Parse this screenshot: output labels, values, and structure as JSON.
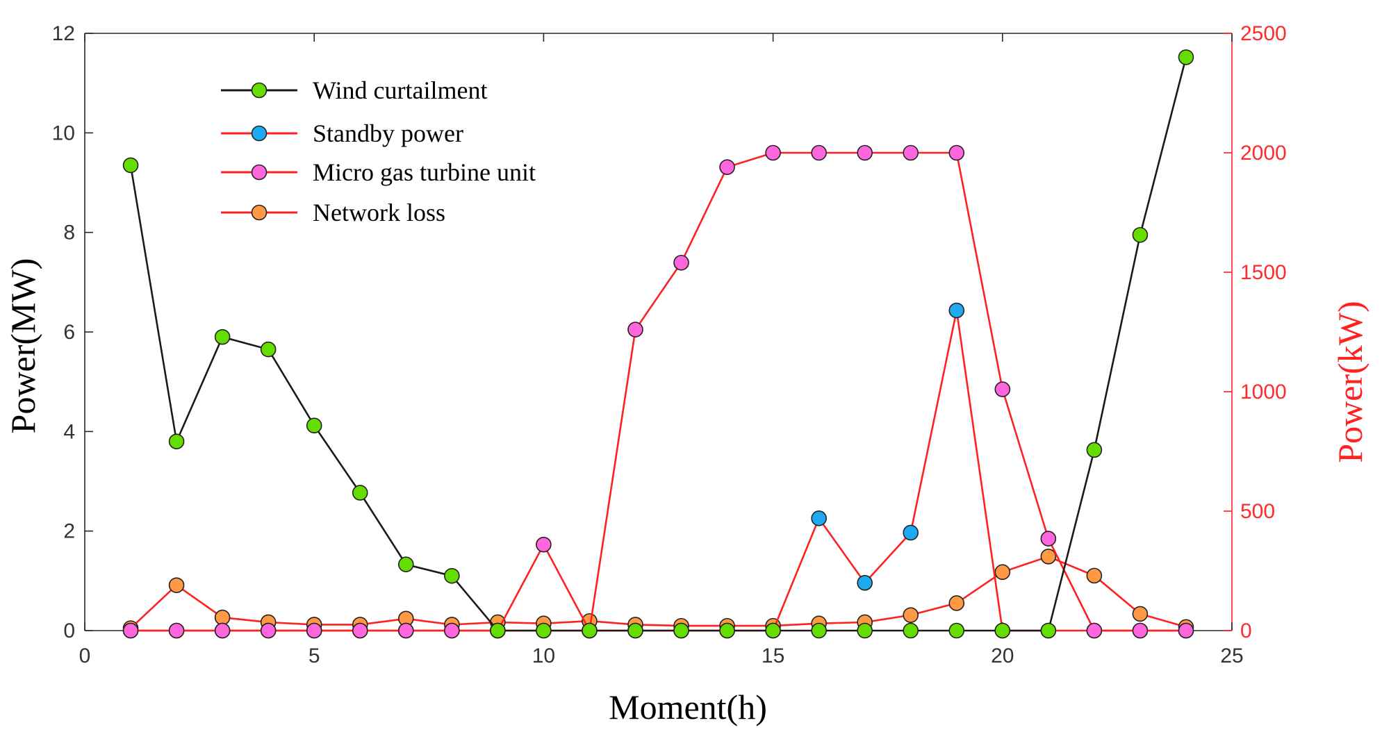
{
  "chart_data": {
    "type": "line",
    "xlabel": "Moment(h)",
    "ylabel_left": "Power(MW)",
    "ylabel_right": "Power(kW)",
    "xlim": [
      0,
      25
    ],
    "ylim_left": [
      0,
      12
    ],
    "ylim_right": [
      0,
      2500
    ],
    "xticks": [
      0,
      5,
      10,
      15,
      20,
      25
    ],
    "yticks_left": [
      0,
      2,
      4,
      6,
      8,
      10,
      12
    ],
    "yticks_right": [
      0,
      500,
      1000,
      1500,
      2000,
      2500
    ],
    "grid": false,
    "legend_position": "top-left",
    "x": [
      1,
      2,
      3,
      4,
      5,
      6,
      7,
      8,
      9,
      10,
      11,
      12,
      13,
      14,
      15,
      16,
      17,
      18,
      19,
      20,
      21,
      22,
      23,
      24
    ],
    "series": [
      {
        "name": "Wind curtailment",
        "axis": "left",
        "line_color": "#1a1a1a",
        "marker_color": "#66dd00",
        "values": [
          9.35,
          3.8,
          5.9,
          5.65,
          4.12,
          2.77,
          1.33,
          1.1,
          0,
          0,
          0,
          0,
          0,
          0,
          0,
          0,
          0,
          0,
          0,
          0,
          0,
          3.63,
          7.95,
          11.52
        ]
      },
      {
        "name": "Standby power",
        "axis": "right",
        "line_color": "#ff2020",
        "marker_color": "#1eaaf0",
        "values": [
          0,
          0,
          0,
          0,
          0,
          0,
          0,
          0,
          0,
          0,
          0,
          0,
          0,
          0,
          0,
          470,
          200,
          410,
          1340,
          0,
          0,
          0,
          0,
          0
        ]
      },
      {
        "name": "Micro gas turbine unit",
        "axis": "right",
        "line_color": "#ff2020",
        "marker_color": "#ff66dd",
        "values": [
          0,
          0,
          0,
          0,
          0,
          0,
          0,
          0,
          0,
          360,
          0,
          1260,
          1540,
          1940,
          2000,
          2000,
          2000,
          2000,
          2000,
          1010,
          385,
          0,
          0,
          0
        ]
      },
      {
        "name": "Network loss",
        "axis": "right",
        "line_color": "#ff2020",
        "marker_color": "#ff9944",
        "values": [
          10,
          190,
          55,
          35,
          25,
          25,
          50,
          25,
          35,
          30,
          40,
          25,
          20,
          20,
          20,
          30,
          35,
          65,
          115,
          245,
          310,
          230,
          70,
          15
        ]
      }
    ]
  }
}
